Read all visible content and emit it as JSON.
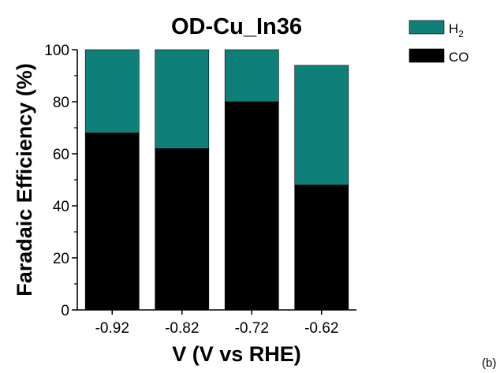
{
  "chart_data": {
    "type": "bar",
    "stacked": true,
    "title": "OD-Cu_In36",
    "xlabel": "V (V vs RHE)",
    "ylabel": "Faradaic Efficiency (%)",
    "categories": [
      "-0.92",
      "-0.82",
      "-0.72",
      "-0.62"
    ],
    "series": [
      {
        "name": "CO",
        "values": [
          68,
          62,
          80,
          48
        ],
        "color": "#000000"
      },
      {
        "name": "H2",
        "values": [
          32,
          38,
          20,
          46
        ],
        "color": "#0f8079"
      }
    ],
    "legend": [
      {
        "label_main": "H",
        "label_sub": "2",
        "color": "#0f8079"
      },
      {
        "label_main": "CO",
        "label_sub": "",
        "color": "#000000"
      }
    ],
    "ylim": [
      0,
      100
    ],
    "yticks": [
      "0",
      "20",
      "40",
      "60",
      "80",
      "100"
    ],
    "grid": false,
    "legend_position": "top-right"
  },
  "panel_label": "(b)"
}
